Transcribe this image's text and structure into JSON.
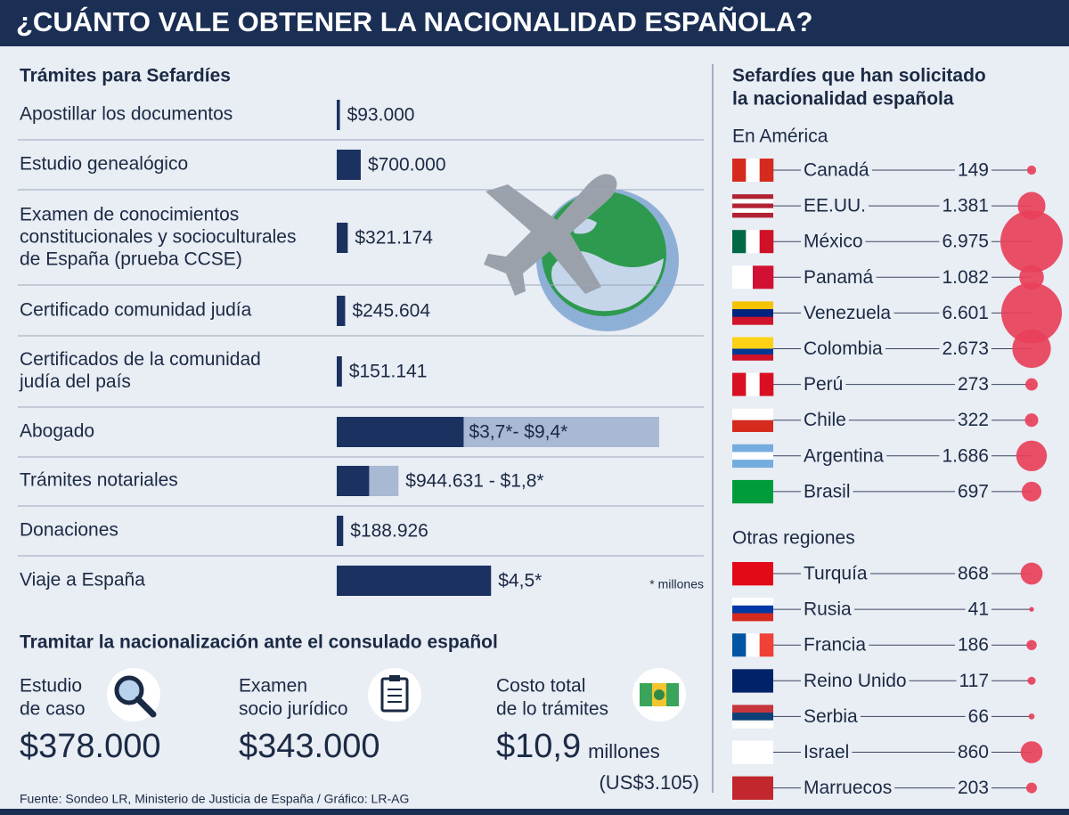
{
  "title": "¿CUÁNTO VALE OBTENER LA NACIONALIDAD ESPAÑOLA?",
  "costs": {
    "title": "Trámites para Sefardíes",
    "note": "* millones",
    "color": "#1b3160",
    "range_color": "#a9b8d3",
    "items": [
      {
        "lines": [
          "Apostillar los documentos"
        ],
        "value": 93000,
        "label": "$93.000"
      },
      {
        "lines": [
          "Estudio genealógico"
        ],
        "value": 700000,
        "label": "$700.000"
      },
      {
        "lines": [
          "Examen de conocimientos",
          "constitucionales y socioculturales",
          "de España (prueba CCSE)"
        ],
        "value": 321174,
        "label": "$321.174"
      },
      {
        "lines": [
          "Certificado comunidad judía"
        ],
        "value": 245604,
        "label": "$245.604"
      },
      {
        "lines": [
          "Certificados de la comunidad",
          "judía del país"
        ],
        "value": 151141,
        "label": "$151.141"
      },
      {
        "lines": [
          "Abogado"
        ],
        "value": 3700000,
        "high": 9400000,
        "label": "$3,7*- $9,4*"
      },
      {
        "lines": [
          "Trámites notariales"
        ],
        "value": 944631,
        "high": 1800000,
        "label": "$944.631 - $1,8*"
      },
      {
        "lines": [
          "Donaciones"
        ],
        "value": 188926,
        "label": "$188.926"
      },
      {
        "lines": [
          "Viaje a España"
        ],
        "value": 4500000,
        "label": "$4,5*"
      }
    ]
  },
  "consulate": {
    "title": "Tramitar la nacionalización ante el consulado español",
    "items": [
      {
        "lines": [
          "Estudio",
          "de caso"
        ],
        "amount": "$378.000"
      },
      {
        "lines": [
          "Examen",
          "socio jurídico"
        ],
        "amount": "$343.000"
      },
      {
        "lines": [
          "Costo total",
          "de lo trámites"
        ],
        "amount": "$10,9",
        "unit": "millones",
        "usd": "(US$3.105)"
      }
    ]
  },
  "source": "Fuente: Sondeo LR, Ministerio de Justicia de España / Gráfico: LR-AG",
  "applicants": {
    "title_lines": [
      "Sefardíes que han solicitado",
      "la nacionalidad española"
    ],
    "color": "#e8405a",
    "groups": [
      {
        "name": "En América",
        "countries": [
          {
            "name": "Canadá",
            "value": 149
          },
          {
            "name": "EE.UU.",
            "value": 1381,
            "label": "1.381"
          },
          {
            "name": "México",
            "value": 6975,
            "label": "6.975"
          },
          {
            "name": "Panamá",
            "value": 1082,
            "label": "1.082"
          },
          {
            "name": "Venezuela",
            "value": 6601,
            "label": "6.601"
          },
          {
            "name": "Colombia",
            "value": 2673,
            "label": "2.673"
          },
          {
            "name": "Perú",
            "value": 273
          },
          {
            "name": "Chile",
            "value": 322
          },
          {
            "name": "Argentina",
            "value": 1686,
            "label": "1.686"
          },
          {
            "name": "Brasil",
            "value": 697
          }
        ]
      },
      {
        "name": "Otras regiones",
        "countries": [
          {
            "name": "Turquía",
            "value": 868
          },
          {
            "name": "Rusia",
            "value": 41
          },
          {
            "name": "Francia",
            "value": 186
          },
          {
            "name": "Reino Unido",
            "value": 117
          },
          {
            "name": "Serbia",
            "value": 66
          },
          {
            "name": "Israel",
            "value": 860
          },
          {
            "name": "Marruecos",
            "value": 203
          }
        ]
      }
    ]
  }
}
